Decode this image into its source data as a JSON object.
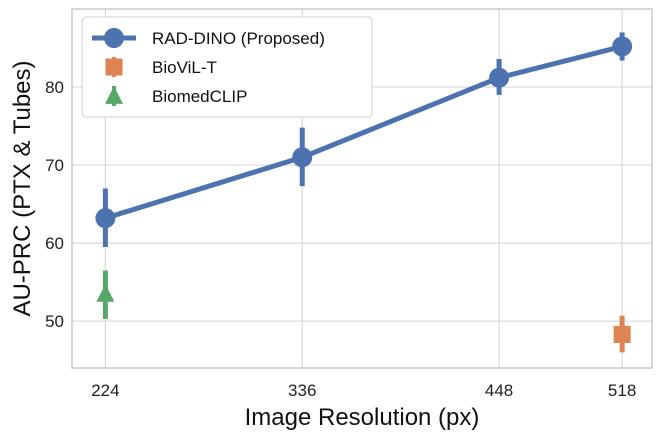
{
  "chart_data": {
    "type": "line",
    "xlabel": "Image Resolution (px)",
    "ylabel": "AU-PRC  (PTX & Tubes)",
    "x_ticks": [
      224,
      336,
      448,
      518
    ],
    "y_ticks": [
      50,
      60,
      70,
      80
    ],
    "xlim": [
      205,
      535
    ],
    "ylim": [
      44,
      90
    ],
    "grid": true,
    "legend_position": "top-left",
    "series": [
      {
        "name": "RAD-DINO (Proposed)",
        "marker": "circle",
        "color": "#4c72b0",
        "line": true,
        "points": [
          {
            "x": 224,
            "y": 63.2,
            "err_low": 59.5,
            "err_high": 67.0
          },
          {
            "x": 336,
            "y": 71.0,
            "err_low": 67.3,
            "err_high": 74.8
          },
          {
            "x": 448,
            "y": 81.2,
            "err_low": 79.0,
            "err_high": 83.6
          },
          {
            "x": 518,
            "y": 85.2,
            "err_low": 83.4,
            "err_high": 87.0
          }
        ]
      },
      {
        "name": "BioViL-T",
        "marker": "square",
        "color": "#dd8452",
        "line": false,
        "points": [
          {
            "x": 518,
            "y": 48.3,
            "err_low": 46.0,
            "err_high": 50.7
          }
        ]
      },
      {
        "name": "BiomedCLIP",
        "marker": "triangle",
        "color": "#55a868",
        "line": false,
        "points": [
          {
            "x": 224,
            "y": 53.5,
            "err_low": 50.3,
            "err_high": 56.5
          }
        ]
      }
    ]
  }
}
